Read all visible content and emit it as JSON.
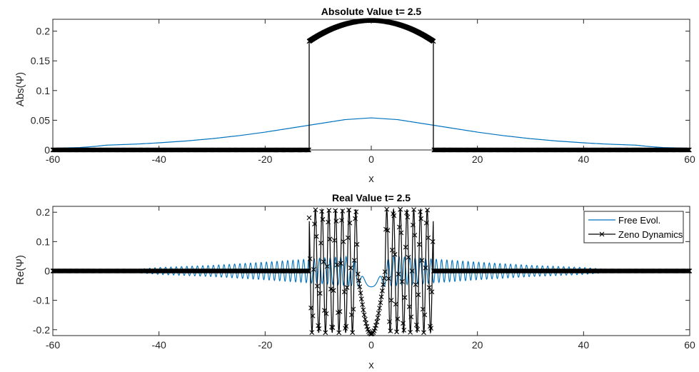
{
  "chart_data": [
    {
      "type": "line",
      "title": "Absolute Value t= 2.5",
      "xlabel": "x",
      "ylabel": "Abs(Ψ)",
      "xlim": [
        -60,
        60
      ],
      "ylim": [
        0,
        0.22
      ],
      "xticks": [
        "-60",
        "-40",
        "-20",
        "0",
        "20",
        "40",
        "60"
      ],
      "yticks": [
        "0",
        "0.05",
        "0.1",
        "0.15",
        "0.2"
      ],
      "grid": false,
      "legend": null,
      "series": [
        {
          "color": "#0072BD",
          "marker": "none",
          "x": [
            -60,
            -55,
            -52,
            -50,
            -47,
            -44,
            -40,
            -35,
            -30,
            -25,
            -20,
            -15,
            -10,
            -5,
            0,
            5,
            10,
            15,
            20,
            25,
            30,
            35,
            40,
            44,
            47,
            50,
            52,
            55,
            60
          ],
          "y": [
            0.003,
            0.004,
            0.006,
            0.008,
            0.009,
            0.01,
            0.012,
            0.015,
            0.019,
            0.024,
            0.03,
            0.037,
            0.044,
            0.051,
            0.054,
            0.051,
            0.044,
            0.037,
            0.03,
            0.024,
            0.019,
            0.015,
            0.012,
            0.01,
            0.009,
            0.008,
            0.006,
            0.004,
            0.003
          ]
        },
        {
          "color": "#000000",
          "marker": "x",
          "x": [
            -60,
            -11.7,
            -11.7,
            -10,
            -8,
            -6,
            -4,
            -2,
            0,
            2,
            4,
            6,
            8,
            10,
            11.7,
            11.7,
            60
          ],
          "y": [
            0,
            0,
            0.183,
            0.191,
            0.199,
            0.206,
            0.212,
            0.216,
            0.218,
            0.216,
            0.212,
            0.206,
            0.199,
            0.191,
            0.183,
            0,
            0
          ]
        }
      ]
    },
    {
      "type": "line",
      "title": "Real Value t= 2.5",
      "xlabel": "x",
      "ylabel": "Re(Ψ)",
      "xlim": [
        -60,
        60
      ],
      "ylim": [
        -0.22,
        0.22
      ],
      "xticks": [
        "-60",
        "-40",
        "-20",
        "0",
        "20",
        "40",
        "60"
      ],
      "yticks": [
        "-0.2",
        "-0.1",
        "0",
        "0.1",
        "0.2"
      ],
      "grid": false,
      "legend": "top-right",
      "series": [
        {
          "name": "Free Evol.",
          "color": "#0072BD",
          "marker": "none",
          "support": [
            -48,
            48
          ],
          "core": {
            "center_value": -0.054,
            "width": 4.0
          },
          "envelope": [
            [
              -48,
              0.0
            ],
            [
              -40,
              0.012
            ],
            [
              -30,
              0.019
            ],
            [
              -20,
              0.03
            ],
            [
              -12,
              0.04
            ],
            [
              -8,
              0.045
            ],
            [
              -4,
              0.05
            ],
            [
              0,
              0.054
            ],
            [
              4,
              0.05
            ],
            [
              8,
              0.045
            ],
            [
              12,
              0.04
            ],
            [
              20,
              0.03
            ],
            [
              30,
              0.019
            ],
            [
              40,
              0.012
            ],
            [
              48,
              0.0
            ]
          ],
          "cycles_per_unit": 1.0
        },
        {
          "name": "Zeno Dynamics",
          "color": "#000000",
          "marker": "x",
          "outside_value": 0,
          "inner_range": [
            -11.7,
            11.7
          ],
          "amplitude": 0.21,
          "center_value": -0.215,
          "central_lobe_halfwidth": 2.6,
          "peaks_x": [
            -11.2,
            -10.0,
            -8.8,
            -7.5,
            -6.2,
            -4.9,
            -3.6,
            3.6,
            4.9,
            6.2,
            7.5,
            8.8,
            10.0,
            11.2
          ]
        }
      ]
    }
  ]
}
